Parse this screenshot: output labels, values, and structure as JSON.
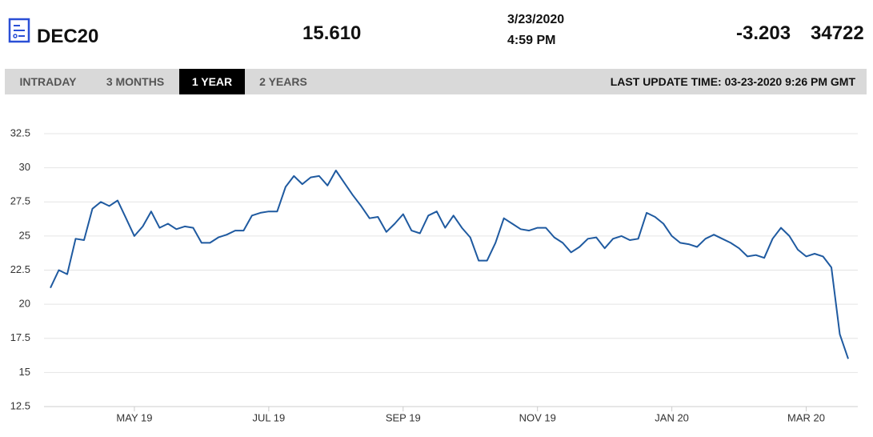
{
  "header": {
    "symbol": "DEC20",
    "price": "15.610",
    "date": "3/23/2020",
    "time": "4:59 PM",
    "change": "-3.203",
    "volume": "34722"
  },
  "tabs": [
    "INTRADAY",
    "3 MONTHS",
    "1 YEAR",
    "2 YEARS"
  ],
  "active_tab": 2,
  "last_update": "LAST UPDATE TIME: 03-23-2020 9:26 PM GMT",
  "chart_data": {
    "type": "line",
    "color": "#1f5aa0",
    "grid": true,
    "ylim": [
      12.5,
      32.5
    ],
    "yticks": [
      12.5,
      15,
      17.5,
      20,
      22.5,
      25,
      27.5,
      30,
      32.5
    ],
    "categories": [
      null,
      null,
      null,
      null,
      null,
      null,
      null,
      null,
      null,
      null,
      "MAY 19",
      null,
      null,
      null,
      null,
      null,
      null,
      null,
      null,
      null,
      null,
      null,
      null,
      null,
      null,
      null,
      "JUL 19",
      null,
      null,
      null,
      null,
      null,
      null,
      null,
      null,
      null,
      null,
      null,
      null,
      null,
      null,
      null,
      "SEP 19",
      null,
      null,
      null,
      null,
      null,
      null,
      null,
      null,
      null,
      null,
      null,
      null,
      null,
      null,
      null,
      "NOV 19",
      null,
      null,
      null,
      null,
      null,
      null,
      null,
      null,
      null,
      null,
      null,
      null,
      null,
      null,
      null,
      "JAN 20",
      null,
      null,
      null,
      null,
      null,
      null,
      null,
      null,
      null,
      null,
      null,
      null,
      null,
      null,
      null,
      "MAR 20",
      null,
      null,
      null,
      null,
      null
    ],
    "values": [
      21.2,
      22.5,
      22.2,
      24.8,
      24.7,
      27,
      27.5,
      27.2,
      27.6,
      26.3,
      25,
      25.7,
      26.8,
      25.6,
      25.9,
      25.5,
      25.7,
      25.6,
      24.5,
      24.5,
      24.9,
      25.1,
      25.4,
      25.4,
      26.5,
      26.7,
      26.8,
      26.8,
      28.6,
      29.4,
      28.8,
      29.3,
      29.4,
      28.7,
      29.8,
      28.9,
      28,
      27.2,
      26.3,
      26.4,
      25.3,
      25.9,
      26.6,
      25.4,
      25.2,
      26.5,
      26.8,
      25.6,
      26.5,
      25.6,
      24.9,
      23.2,
      23.2,
      24.5,
      26.3,
      25.9,
      25.5,
      25.4,
      25.6,
      25.6,
      24.9,
      24.5,
      23.8,
      24.2,
      24.8,
      24.9,
      24.1,
      24.8,
      25,
      24.7,
      24.8,
      26.7,
      26.4,
      25.9,
      25,
      24.5,
      24.4,
      24.2,
      24.8,
      25.1,
      24.8,
      24.5,
      24.1,
      23.5,
      23.6,
      23.4,
      24.8,
      25.6,
      25,
      24,
      23.5,
      23.7,
      23.5,
      22.7,
      17.8,
      16
    ]
  }
}
